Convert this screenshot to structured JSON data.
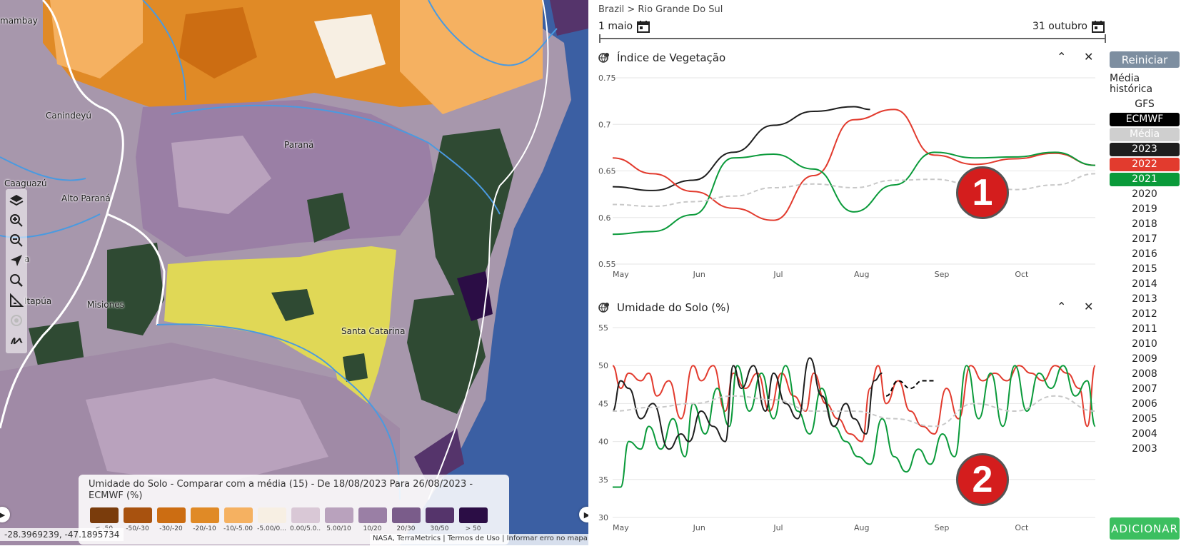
{
  "map": {
    "labels": {
      "mambay": "mambay",
      "canindeyu": "Canindeyú",
      "parana": "Paraná",
      "caaguazu": "Caaguazú",
      "alto_parana": "Alto Paraná",
      "misiones": "Misiones",
      "itapua": "Itapúa",
      "santa_catarina": "Santa Catarina",
      "a": "a"
    },
    "toolbar": [
      "layers-icon",
      "zoom-in-icon",
      "zoom-out-icon",
      "locate-icon",
      "search-icon",
      "measure-icon",
      "target-icon",
      "draw-icon"
    ],
    "legend": {
      "title": "Umidade do Solo - Comparar com a média (15) - De 18/08/2023 Para 26/08/2023 - ECMWF (%)",
      "items": [
        {
          "label": "< -50",
          "color": "#7a3c0c"
        },
        {
          "label": "-50/-30",
          "color": "#a8520f"
        },
        {
          "label": "-30/-20",
          "color": "#cc6d12"
        },
        {
          "label": "-20/-10",
          "color": "#e08a26"
        },
        {
          "label": "-10/-5.00",
          "color": "#f5b161"
        },
        {
          "label": "-5.00/0...",
          "color": "#f7efe3"
        },
        {
          "label": "0.00/5.0...",
          "color": "#d9c8d6"
        },
        {
          "label": "5.00/10",
          "color": "#b9a2bd"
        },
        {
          "label": "10/20",
          "color": "#9a7fa5"
        },
        {
          "label": "20/30",
          "color": "#7a5c8a"
        },
        {
          "label": "30/50",
          "color": "#55346b"
        },
        {
          "label": "> 50",
          "color": "#2b0d45"
        }
      ]
    },
    "coords": "-28.3969239, -47.1895734",
    "attribution": "NASA, TerraMetrics | Termos de Uso | Informar erro no mapa"
  },
  "panel": {
    "breadcrumb": "Brazil > Rio Grande Do Sul",
    "start_date": "1 maio",
    "end_date": "31 outubro",
    "reset_label": "Reiniciar",
    "hist_label": "Média histórica",
    "add_label": "ADICIONAR",
    "years": [
      {
        "label": "GFS",
        "bg": "",
        "fg": "#222"
      },
      {
        "label": "ECMWF",
        "bg": "#000000",
        "fg": "#ffffff"
      },
      {
        "label": "Média",
        "bg": "#cfcfcf",
        "fg": "#ffffff"
      },
      {
        "label": "2023",
        "bg": "#1e1e1e",
        "fg": "#ffffff"
      },
      {
        "label": "2022",
        "bg": "#e23b2e",
        "fg": "#ffffff"
      },
      {
        "label": "2021",
        "bg": "#0a9a3a",
        "fg": "#ffffff"
      },
      {
        "label": "2020"
      },
      {
        "label": "2019"
      },
      {
        "label": "2018"
      },
      {
        "label": "2017"
      },
      {
        "label": "2016"
      },
      {
        "label": "2015"
      },
      {
        "label": "2014"
      },
      {
        "label": "2013"
      },
      {
        "label": "2012"
      },
      {
        "label": "2011"
      },
      {
        "label": "2010"
      },
      {
        "label": "2009"
      },
      {
        "label": "2008"
      },
      {
        "label": "2007"
      },
      {
        "label": "2006"
      },
      {
        "label": "2005"
      },
      {
        "label": "2004"
      },
      {
        "label": "2003"
      }
    ],
    "badges": [
      "1",
      "2"
    ]
  },
  "chart_data": [
    {
      "type": "line",
      "title": "Índice de Vegetação",
      "x_ticks": [
        "May",
        "Jun",
        "Jul",
        "Aug",
        "Sep",
        "Oct"
      ],
      "y_ticks": [
        0.55,
        0.6,
        0.65,
        0.7,
        0.75
      ],
      "y_tick_labels": [
        "0.55",
        "0.6",
        "0.65",
        "0.7",
        "0.75"
      ],
      "ylim": [
        0.55,
        0.75
      ],
      "xlim": [
        0,
        6
      ],
      "grid": true,
      "series": [
        {
          "name": "2023",
          "color": "#1e1e1e",
          "style": "solid",
          "x": [
            0,
            0.5,
            1,
            1.5,
            2,
            2.5,
            3,
            3.2
          ],
          "y": [
            0.633,
            0.629,
            0.64,
            0.67,
            0.699,
            0.714,
            0.719,
            0.716
          ]
        },
        {
          "name": "2022",
          "color": "#e23b2e",
          "style": "solid",
          "x": [
            0,
            0.5,
            1,
            1.5,
            2,
            2.5,
            3,
            3.5,
            4,
            4.5,
            5,
            5.5,
            6
          ],
          "y": [
            0.664,
            0.647,
            0.628,
            0.61,
            0.597,
            0.645,
            0.705,
            0.716,
            0.667,
            0.657,
            0.663,
            0.669,
            0.656
          ]
        },
        {
          "name": "2021",
          "color": "#0a9a3a",
          "style": "solid",
          "x": [
            0,
            0.5,
            1,
            1.5,
            2,
            2.5,
            3,
            3.5,
            4,
            4.5,
            5,
            5.5,
            6
          ],
          "y": [
            0.582,
            0.585,
            0.603,
            0.664,
            0.668,
            0.652,
            0.606,
            0.635,
            0.67,
            0.664,
            0.665,
            0.67,
            0.656
          ]
        },
        {
          "name": "Média",
          "color": "#c8c8c8",
          "style": "dashed",
          "x": [
            0,
            0.5,
            1,
            1.5,
            2,
            2.5,
            3,
            3.5,
            4,
            4.5,
            5,
            5.5,
            6
          ],
          "y": [
            0.614,
            0.612,
            0.617,
            0.623,
            0.632,
            0.636,
            0.632,
            0.64,
            0.641,
            0.635,
            0.63,
            0.635,
            0.647
          ]
        }
      ]
    },
    {
      "type": "line",
      "title": "Umidade do Solo (%)",
      "x_ticks": [
        "May",
        "Jun",
        "Jul",
        "Aug",
        "Sep",
        "Oct"
      ],
      "y_ticks": [
        30,
        35,
        40,
        45,
        50,
        55
      ],
      "y_tick_labels": [
        "30",
        "35",
        "40",
        "45",
        "50",
        "55"
      ],
      "ylim": [
        30,
        55
      ],
      "xlim": [
        0,
        6
      ],
      "grid": true,
      "series": [
        {
          "name": "2022",
          "color": "#e23b2e",
          "style": "solid",
          "x": [
            0,
            0.1,
            0.2,
            0.35,
            0.45,
            0.55,
            0.7,
            0.85,
            1,
            1.1,
            1.25,
            1.4,
            1.5,
            1.65,
            1.8,
            1.95,
            2.1,
            2.25,
            2.4,
            2.5,
            2.65,
            2.8,
            2.95,
            3.1,
            3.2,
            3.3,
            3.4,
            3.55,
            3.7,
            3.85,
            4,
            4.15,
            4.3,
            4.45,
            4.6,
            4.75,
            4.9,
            5.05,
            5.2,
            5.35,
            5.5,
            5.65,
            5.8,
            5.9,
            6
          ],
          "y": [
            50,
            47,
            49,
            48,
            49,
            46,
            48,
            43,
            50,
            48,
            50,
            44,
            49,
            47,
            49,
            44,
            49,
            46,
            44,
            49,
            45,
            43,
            41,
            40,
            47,
            50,
            45,
            48,
            44,
            42,
            41,
            47,
            43,
            50,
            48,
            49,
            48,
            50,
            49,
            48,
            50,
            49,
            47,
            42,
            50
          ]
        },
        {
          "name": "2021",
          "color": "#0a9a3a",
          "style": "solid",
          "x": [
            0,
            0.1,
            0.2,
            0.35,
            0.45,
            0.6,
            0.75,
            0.9,
            1,
            1.15,
            1.3,
            1.45,
            1.55,
            1.7,
            1.85,
            2,
            2.15,
            2.3,
            2.45,
            2.6,
            2.75,
            2.9,
            3.05,
            3.2,
            3.35,
            3.5,
            3.65,
            3.8,
            3.95,
            4.1,
            4.25,
            4.4,
            4.55,
            4.7,
            4.85,
            5,
            5.15,
            5.3,
            5.45,
            5.6,
            5.75,
            5.9,
            6
          ],
          "y": [
            34,
            34,
            40,
            39,
            42,
            39,
            43,
            38,
            45,
            41,
            47,
            42,
            50,
            44,
            49,
            43,
            50,
            44,
            41,
            47,
            42,
            40,
            38,
            37,
            43,
            38,
            36,
            39,
            37,
            41,
            38,
            50,
            43,
            49,
            42,
            50,
            44,
            49,
            47,
            50,
            46,
            48,
            42
          ]
        },
        {
          "name": "2023",
          "color": "#1e1e1e",
          "style": "solid",
          "x": [
            0,
            0.1,
            0.2,
            0.35,
            0.5,
            0.7,
            0.85,
            0.95,
            1.1,
            1.25,
            1.4,
            1.5,
            1.6,
            1.75,
            1.9,
            2,
            2.15,
            2.3,
            2.45,
            2.6,
            2.75,
            2.9,
            3,
            3.15,
            3.25,
            3.35
          ],
          "y": [
            44,
            48,
            47,
            43,
            45,
            39,
            41,
            40,
            44,
            42,
            40,
            50,
            47,
            50,
            44,
            49,
            45,
            43,
            51,
            46,
            42,
            45,
            43,
            41,
            48,
            49
          ]
        },
        {
          "name": "ECMWF",
          "color": "#000000",
          "style": "dashed",
          "x": [
            3.4,
            3.55,
            3.7,
            3.85,
            4
          ],
          "y": [
            46,
            48,
            47,
            48,
            48
          ]
        },
        {
          "name": "Média",
          "color": "#c8c8c8",
          "style": "dashed",
          "x": [
            0,
            0.5,
            1,
            1.5,
            2,
            2.5,
            3,
            3.5,
            4,
            4.5,
            5,
            5.5,
            6
          ],
          "y": [
            44,
            44.5,
            45,
            46,
            45.5,
            44,
            44,
            43,
            42,
            45,
            44,
            46,
            44
          ]
        }
      ]
    }
  ]
}
